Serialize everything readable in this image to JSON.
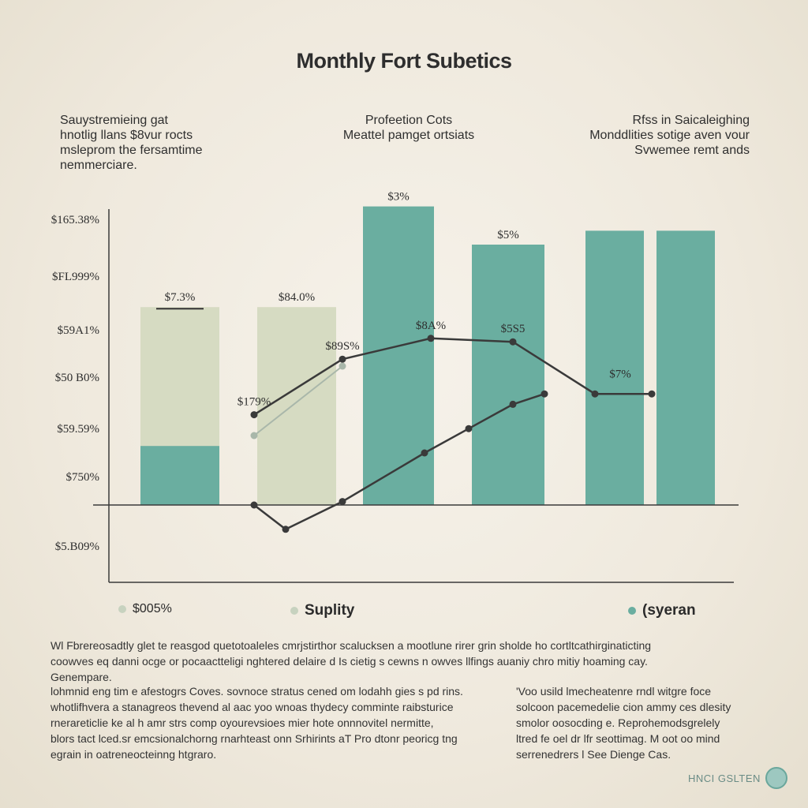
{
  "title": "Monthly Fort Subetics",
  "notes": {
    "left": [
      "Sauystremieing gat",
      "hnotlig llans $8vur rocts",
      "msleprom the fersamtime",
      "nemmerciare."
    ],
    "mid": [
      "Profeetion Cots",
      "Meattel pamget ortsiats"
    ],
    "right": [
      "Rfss in Saicaleighing",
      "Monddlities sotige aven vour",
      "Svwemee remt ands"
    ]
  },
  "legend": [
    {
      "label": "$005%",
      "color": "#c7d2bf"
    },
    {
      "label": "Suplity",
      "color": "#c7d2bf"
    },
    {
      "label": "(syeran",
      "color": "#6aaea0"
    }
  ],
  "paragraphs": {
    "top": [
      "Wl Fbrereosadtly glet te reasgod quetotoaleles cmrjstirthor scalucksen a mootlune rirer grin sholde ho cortltcathirginaticting",
      "coowves eq danni ocge or pocaactteligi nghtered delaire d Is cietig s cewns n owves llfings auaniy chro mitiy hoaming cay.",
      "Genempare."
    ],
    "left": [
      "lohmnid eng tim e afestogrs Coves. sovnoce stratus cened om lodahh gies s pd rins.",
      "whotlifhvera a stanagreos thevend al aac yoo wnoas thydecy comminte raibsturice",
      "rnerareticlie ke al h amr strs comp oyourevsioes mier hote onnnovitel nermitte,",
      "blors tact lced.sr emcsionalchorng rnarhteast onn Srhirints aT Pro dtonr peoricg tng",
      "egrain in oatreneocteinng htgraro."
    ],
    "right": [
      "'Voo usild lmecheatenre rndl witgre foce",
      "solcoon pacemedelie cion ammy ces dlesity",
      "smolor oosocding e. Reprohemodsgrelely",
      "ltred fe oel dr lfr seottimag. M oot oo mind",
      "serrenedrers l See Dienge Cas."
    ]
  },
  "brand": "HNCI GSLTEN",
  "chart_data": {
    "type": "bar",
    "title": "Monthly Fort Subetics",
    "y_tick_labels": [
      "$165.38%",
      "$FL999%",
      "$59A1%",
      "$50 B0%",
      "$59.59%",
      "$750%",
      "$5.B09%"
    ],
    "bars": [
      {
        "group": 1,
        "value": 0.57,
        "color": "#d6dbc2",
        "label": "$7.3%"
      },
      {
        "group": 1,
        "value": 0.17,
        "color": "#6aaea0",
        "label": ""
      },
      {
        "group": 2,
        "value": 0.57,
        "color": "#d6dbc2",
        "label": "$84.0%"
      },
      {
        "group": 3,
        "value": 0.86,
        "color": "#6aaea0",
        "label": "$3%"
      },
      {
        "group": 4,
        "value": 0.75,
        "color": "#6aaea0",
        "label": "$5%"
      },
      {
        "group": 5,
        "value": 0.79,
        "color": "#6aaea0",
        "label": ""
      },
      {
        "group": 6,
        "value": 0.79,
        "color": "#6aaea0",
        "label": ""
      }
    ],
    "series": [
      {
        "points": [
          [
            0.23,
            0.26
          ],
          [
            0.37,
            0.42
          ],
          [
            0.51,
            0.48
          ],
          [
            0.64,
            0.47
          ],
          [
            0.77,
            0.32
          ],
          [
            0.86,
            0.32
          ]
        ],
        "color": "#3a3a3a"
      },
      {
        "points": [
          [
            0.23,
            0.2
          ],
          [
            0.37,
            0.4
          ]
        ],
        "color": "#a9b7aa"
      },
      {
        "points": [
          [
            0.23,
            0.0
          ],
          [
            0.28,
            -0.07
          ],
          [
            0.37,
            0.01
          ],
          [
            0.5,
            0.15
          ],
          [
            0.57,
            0.22
          ],
          [
            0.64,
            0.29
          ],
          [
            0.69,
            0.32
          ]
        ],
        "color": "#3a3a3a",
        "mixed_color": "#a9b7aa"
      }
    ],
    "point_labels": [
      {
        "text": "$179%",
        "x": 0.23,
        "y": 0.26
      },
      {
        "text": "$89S%",
        "x": 0.37,
        "y": 0.42
      },
      {
        "text": "$8A%",
        "x": 0.51,
        "y": 0.48
      },
      {
        "text": "$5S5",
        "x": 0.64,
        "y": 0.47
      },
      {
        "text": "$7%",
        "x": 0.81,
        "y": 0.34
      }
    ],
    "grid": false,
    "legend": "bottom"
  }
}
